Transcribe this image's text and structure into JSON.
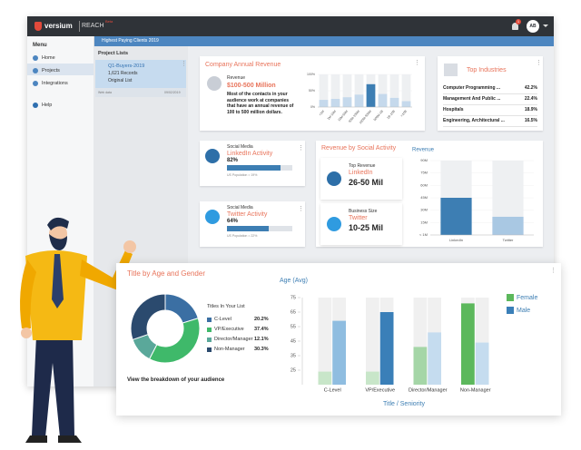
{
  "header": {
    "brand": "versium",
    "product": "REACH",
    "badge": "Beta",
    "notification_count": "1",
    "avatar": "AB",
    "breadcrumb": "Highest Paying Clients 2019"
  },
  "sidebar": {
    "title": "Menu",
    "items": [
      "Home",
      "Projects",
      "Integrations",
      "Help"
    ]
  },
  "project_lists": {
    "title": "Project Lists",
    "card": {
      "name": "Q1-Buyers-2019",
      "records": "1,621 Records",
      "list_type": "Original List",
      "source": "Web data",
      "date": "09/02/2019"
    }
  },
  "company_revenue": {
    "title": "Company Annual Revenue",
    "label": "Revenue",
    "value": "$100-500 Million",
    "description": "Most of the contacts in your audience work at companies that have an annual revenue of 100 to 500 million dollars.",
    "chart": {
      "type": "bar",
      "categories": [
        "<1M",
        "1M-10M",
        "10M-50M",
        "50M-100M",
        "100M-500M",
        "500M-1B",
        "1B-10B",
        ">10B"
      ],
      "values": [
        22,
        25,
        30,
        38,
        70,
        40,
        28,
        18
      ],
      "colors": [
        "#c5d9ec",
        "#c5d9ec",
        "#c5d9ec",
        "#c5d9ec",
        "#3d7eb3",
        "#c5d9ec",
        "#c5d9ec",
        "#c5d9ec"
      ],
      "ylim": [
        0,
        100
      ],
      "yticks": [
        {
          "value": 0,
          "label": "0%"
        },
        {
          "value": 50,
          "label": "50%"
        },
        {
          "value": 100,
          "label": "100%"
        }
      ]
    }
  },
  "top_industries": {
    "title": "Top Industries",
    "rows": [
      [
        "Computer Programming ...",
        "42.2%"
      ],
      [
        "Management And Public ...",
        "22.4%"
      ],
      [
        "Hospitals",
        "18.9%"
      ],
      [
        "Engineering, Architectural ...",
        "16.5%"
      ]
    ]
  },
  "social": [
    {
      "label": "Social Media",
      "title": "LinkedIn Activity",
      "value": 82,
      "value_label": "82%",
      "note": "US Population = 19%"
    },
    {
      "label": "Social Media",
      "title": "Twitter Activity",
      "value": 64,
      "value_label": "64%",
      "note": "US Population = 22%"
    }
  ],
  "revenue_by_social": {
    "title": "Revenue by Social Activity",
    "highlights": [
      {
        "label": "Top Revenue",
        "platform": "LinkedIn",
        "value": "26-50 Mil"
      },
      {
        "label": "Business Size",
        "platform": "Twitter",
        "value": "10-25 Mil"
      }
    ],
    "chart": {
      "type": "bar",
      "title": "Revenue",
      "categories": [
        "LinkedIn",
        "Twitter"
      ],
      "values": [
        45,
        22
      ],
      "colors": [
        "#3d7eb3",
        "#a9c8e3"
      ],
      "ylim": [
        0,
        90
      ],
      "yticks": [
        {
          "value": 0,
          "label": "< 1M"
        },
        {
          "value": 15,
          "label": "15M"
        },
        {
          "value": 30,
          "label": "30M"
        },
        {
          "value": 45,
          "label": "45M"
        },
        {
          "value": 60,
          "label": "60M"
        },
        {
          "value": 75,
          "label": "75M"
        },
        {
          "value": 90,
          "label": "90M"
        }
      ]
    }
  },
  "age_gender": {
    "title": "Title by Age and Gender",
    "caption": "View the breakdown of your audience",
    "titles": {
      "type": "pie",
      "title": "Titles In Your List",
      "categories": [
        "C-Level",
        "VP/Executive",
        "Director/Manager",
        "Non-Manager"
      ],
      "values": [
        20.2,
        37.4,
        12.1,
        30.3
      ],
      "value_labels": [
        "20.2%",
        "37.4%",
        "12.1%",
        "30.3%"
      ],
      "colors": [
        "#3b6fa3",
        "#3fb96a",
        "#5aa89a",
        "#2b4a6e"
      ]
    },
    "age": {
      "type": "bar",
      "y_label": "Age (Avg)",
      "x_label": "Title / Seniority",
      "categories": [
        "C-Level",
        "VP/Executive",
        "Director/Manager",
        "Non-Manager"
      ],
      "series": [
        {
          "name": "Female",
          "color": "#5cb85c",
          "colors": [
            "#c8e6c9",
            "#c8e6c9",
            "#a5d6a7",
            "#5cb85c"
          ],
          "values": [
            24,
            24,
            41,
            71
          ]
        },
        {
          "name": "Male",
          "color": "#3a7fb8",
          "colors": [
            "#8fbde0",
            "#3a7fb8",
            "#c5dcef",
            "#c5dcef"
          ],
          "values": [
            59,
            65,
            51,
            44
          ]
        }
      ],
      "ylim": [
        15,
        75
      ],
      "yticks": [
        25,
        35,
        45,
        55,
        65,
        75
      ],
      "legend": "right"
    }
  }
}
